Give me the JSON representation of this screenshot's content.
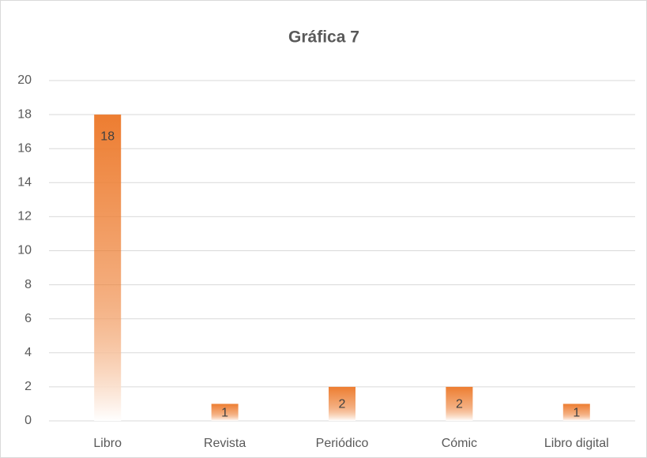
{
  "chart_data": {
    "type": "bar",
    "title": "Gráfica 7",
    "categories": [
      "Libro",
      "Revista",
      "Periódico",
      "Cómic",
      "Libro digital"
    ],
    "values": [
      18,
      1,
      2,
      2,
      1
    ],
    "color": "#ed7d31",
    "ylim": [
      0,
      20
    ],
    "yticks": [
      0,
      2,
      4,
      6,
      8,
      10,
      12,
      14,
      16,
      18,
      20
    ],
    "grid": true,
    "data_labels": true
  }
}
